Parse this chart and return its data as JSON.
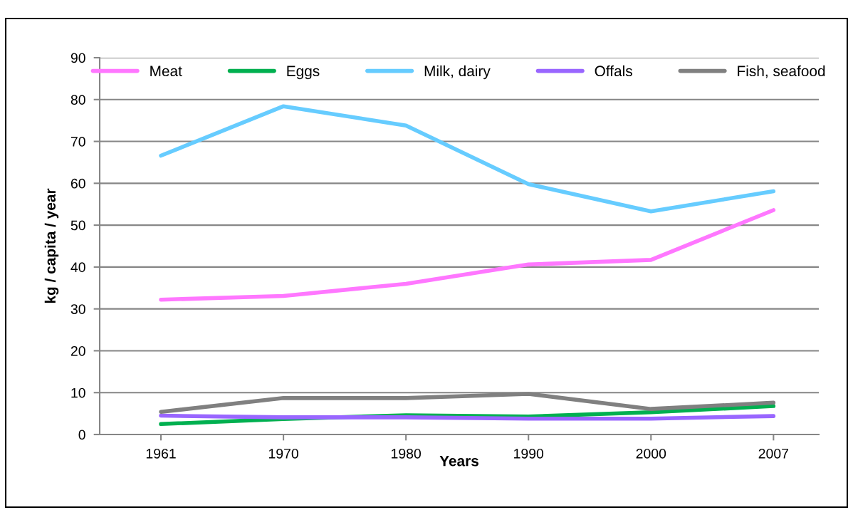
{
  "chart_data": {
    "type": "line",
    "xlabel": "Years",
    "ylabel": "kg / capita / year",
    "categories": [
      "1961",
      "1970",
      "1980",
      "1990",
      "2000",
      "2007"
    ],
    "series": [
      {
        "name": "Meat",
        "color": "#ff77ff",
        "values": [
          32.2,
          33.1,
          36.0,
          40.6,
          41.7,
          53.6
        ]
      },
      {
        "name": "Eggs",
        "color": "#00b050",
        "values": [
          2.5,
          3.7,
          4.6,
          4.3,
          5.3,
          6.8
        ]
      },
      {
        "name": "Milk, dairy",
        "color": "#66ccff",
        "values": [
          66.6,
          78.4,
          73.8,
          59.8,
          53.3,
          58.1
        ]
      },
      {
        "name": "Offals",
        "color": "#9966ff",
        "values": [
          4.5,
          4.1,
          4.1,
          3.8,
          3.8,
          4.4
        ]
      },
      {
        "name": "Fish, seafood",
        "color": "#808080",
        "values": [
          5.4,
          8.7,
          8.7,
          9.7,
          6.1,
          7.6
        ]
      }
    ],
    "ylim": [
      0,
      90
    ],
    "yticks": [
      0,
      10,
      20,
      30,
      40,
      50,
      60,
      70,
      80,
      90
    ],
    "grid": "y",
    "legend": "top",
    "marker": "none",
    "line_style": "solid"
  }
}
